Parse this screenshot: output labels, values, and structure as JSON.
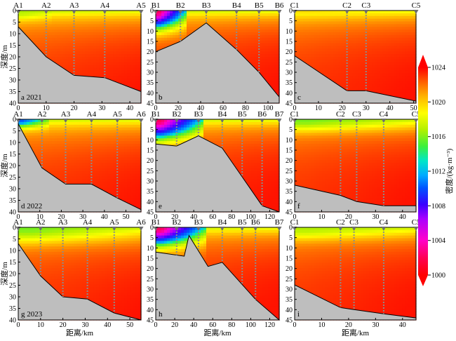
{
  "figure": {
    "y_axis_label": "深度/m",
    "x_axis_label": "距离/km",
    "colorbar_label": "密度/(kg·m⁻³)",
    "colorbar_ticks": [
      1000,
      1004,
      1008,
      1012,
      1016,
      1020,
      1024
    ]
  },
  "chart_data": [
    {
      "panel_label": "a 2021",
      "type": "heatmap",
      "xlim": [
        0,
        44
      ],
      "ylim": [
        40,
        0
      ],
      "xticks": [
        0,
        10,
        20,
        30,
        40
      ],
      "yticks": [
        0,
        5,
        10,
        15,
        20,
        25,
        30,
        35,
        40
      ],
      "stations": [
        {
          "name": "A1",
          "x": 0
        },
        {
          "name": "A2",
          "x": 10
        },
        {
          "name": "A3",
          "x": 20
        },
        {
          "name": "A4",
          "x": 31
        },
        {
          "name": "A5",
          "x": 44
        }
      ],
      "bottom_profile": [
        [
          0,
          7
        ],
        [
          10,
          20
        ],
        [
          20,
          28
        ],
        [
          31,
          29
        ],
        [
          44,
          35
        ]
      ],
      "fresh_tongue": {
        "x0": 0,
        "x1": 12,
        "depth": 4,
        "min_density": 1016
      }
    },
    {
      "panel_label": "b",
      "type": "heatmap",
      "xlim": [
        0,
        110
      ],
      "ylim": [
        45,
        0
      ],
      "xticks": [
        0,
        20,
        40,
        60,
        80,
        100
      ],
      "yticks": [
        0,
        5,
        10,
        15,
        20,
        25,
        30,
        35,
        40,
        45
      ],
      "stations": [
        {
          "name": "B1",
          "x": 0
        },
        {
          "name": "B2",
          "x": 22
        },
        {
          "name": "B3",
          "x": 45
        },
        {
          "name": "B4",
          "x": 72
        },
        {
          "name": "B5",
          "x": 92
        },
        {
          "name": "B6",
          "x": 110
        }
      ],
      "bottom_profile": [
        [
          0,
          20
        ],
        [
          22,
          15
        ],
        [
          45,
          6
        ],
        [
          72,
          19
        ],
        [
          92,
          30
        ],
        [
          110,
          42
        ]
      ],
      "fresh_tongue": {
        "x0": 0,
        "x1": 28,
        "depth": 10,
        "min_density": 1002
      }
    },
    {
      "panel_label": "c",
      "type": "heatmap",
      "xlim": [
        0,
        51
      ],
      "ylim": [
        45,
        0
      ],
      "xticks": [
        0,
        10,
        20,
        30,
        40,
        50
      ],
      "yticks": [
        0,
        5,
        10,
        15,
        20,
        25,
        30,
        35,
        40,
        45
      ],
      "stations": [
        {
          "name": "C1",
          "x": 0
        },
        {
          "name": "C2",
          "x": 22
        },
        {
          "name": "C3",
          "x": 30
        },
        {
          "name": "C5",
          "x": 51
        }
      ],
      "bottom_profile": [
        [
          0,
          22
        ],
        [
          22,
          39
        ],
        [
          30,
          39
        ],
        [
          51,
          44
        ]
      ],
      "fresh_tongue": {
        "x0": 0,
        "x1": 51,
        "depth": 2,
        "min_density": 1019
      }
    },
    {
      "panel_label": "d 2022",
      "type": "heatmap",
      "xlim": [
        0,
        57
      ],
      "ylim": [
        40,
        0
      ],
      "xticks": [
        0,
        10,
        20,
        30,
        40,
        50
      ],
      "yticks": [
        0,
        5,
        10,
        15,
        20,
        25,
        30,
        35,
        40
      ],
      "stations": [
        {
          "name": "A1",
          "x": 0
        },
        {
          "name": "A2",
          "x": 11
        },
        {
          "name": "A3",
          "x": 22
        },
        {
          "name": "A4",
          "x": 34
        },
        {
          "name": "A5",
          "x": 46
        },
        {
          "name": "A6",
          "x": 57
        }
      ],
      "bottom_profile": [
        [
          0,
          2
        ],
        [
          11,
          21
        ],
        [
          22,
          28
        ],
        [
          34,
          28
        ],
        [
          46,
          34
        ],
        [
          57,
          39
        ]
      ],
      "fresh_tongue": {
        "x0": 0,
        "x1": 14,
        "depth": 4,
        "min_density": 1010
      }
    },
    {
      "panel_label": "e",
      "type": "heatmap",
      "xlim": [
        0,
        130
      ],
      "ylim": [
        45,
        0
      ],
      "xticks": [
        0,
        20,
        40,
        60,
        80,
        100,
        120
      ],
      "yticks": [
        0,
        5,
        10,
        15,
        20,
        25,
        30,
        35,
        40,
        45
      ],
      "stations": [
        {
          "name": "B1",
          "x": 0
        },
        {
          "name": "B2",
          "x": 22
        },
        {
          "name": "B3",
          "x": 45
        },
        {
          "name": "B4",
          "x": 70
        },
        {
          "name": "B5",
          "x": 91
        },
        {
          "name": "B6",
          "x": 112
        },
        {
          "name": "B7",
          "x": 130
        }
      ],
      "bottom_profile": [
        [
          0,
          12
        ],
        [
          22,
          13
        ],
        [
          45,
          8
        ],
        [
          70,
          14
        ],
        [
          91,
          28
        ],
        [
          112,
          42
        ],
        [
          130,
          45
        ]
      ],
      "fresh_tongue": {
        "x0": 0,
        "x1": 50,
        "depth": 11,
        "min_density": 1002
      }
    },
    {
      "panel_label": "f",
      "type": "heatmap",
      "xlim": [
        0,
        45
      ],
      "ylim": [
        45,
        0
      ],
      "xticks": [
        0,
        10,
        20,
        30,
        40
      ],
      "yticks": [
        0,
        5,
        10,
        15,
        20,
        25,
        30,
        35,
        40,
        45
      ],
      "stations": [
        {
          "name": "C1",
          "x": 0
        },
        {
          "name": "C2",
          "x": 17
        },
        {
          "name": "C3",
          "x": 23
        },
        {
          "name": "C4",
          "x": 33
        },
        {
          "name": "C5",
          "x": 45
        }
      ],
      "bottom_profile": [
        [
          0,
          32
        ],
        [
          17,
          37
        ],
        [
          23,
          40
        ],
        [
          33,
          42
        ],
        [
          45,
          42
        ]
      ],
      "fresh_tongue": {
        "x0": 0,
        "x1": 45,
        "depth": 6,
        "min_density": 1015
      }
    },
    {
      "panel_label": "g 2023",
      "type": "heatmap",
      "xlim": [
        0,
        55
      ],
      "ylim": [
        40,
        0
      ],
      "xticks": [
        0,
        10,
        20,
        30,
        40,
        50
      ],
      "yticks": [
        0,
        5,
        10,
        15,
        20,
        25,
        30,
        35,
        40
      ],
      "stations": [
        {
          "name": "A1",
          "x": 0
        },
        {
          "name": "A2",
          "x": 10
        },
        {
          "name": "A3",
          "x": 20
        },
        {
          "name": "A4",
          "x": 31
        },
        {
          "name": "A5",
          "x": 43
        },
        {
          "name": "A6",
          "x": 55
        }
      ],
      "bottom_profile": [
        [
          0,
          7
        ],
        [
          10,
          21
        ],
        [
          20,
          30
        ],
        [
          31,
          31
        ],
        [
          43,
          37
        ],
        [
          55,
          40
        ]
      ],
      "fresh_tongue": {
        "x0": 0,
        "x1": 55,
        "depth": 7,
        "min_density": 1015
      }
    },
    {
      "panel_label": "h",
      "type": "heatmap",
      "xlim": [
        0,
        130
      ],
      "ylim": [
        45,
        0
      ],
      "xticks": [
        0,
        20,
        40,
        60,
        80,
        100,
        120
      ],
      "yticks": [
        0,
        5,
        10,
        15,
        20,
        25,
        30,
        35,
        40,
        45
      ],
      "stations": [
        {
          "name": "B1",
          "x": 0
        },
        {
          "name": "B2",
          "x": 22
        },
        {
          "name": "B3",
          "x": 45
        },
        {
          "name": "B4",
          "x": 70
        },
        {
          "name": "B5",
          "x": 91
        },
        {
          "name": "B6",
          "x": 105
        },
        {
          "name": "B7",
          "x": 130
        }
      ],
      "bottom_profile": [
        [
          0,
          12
        ],
        [
          30,
          14
        ],
        [
          35,
          4
        ],
        [
          55,
          19
        ],
        [
          70,
          17
        ],
        [
          105,
          35
        ],
        [
          130,
          45
        ]
      ],
      "fresh_tongue": {
        "x0": 0,
        "x1": 52,
        "depth": 10,
        "min_density": 1002
      }
    },
    {
      "panel_label": "i",
      "type": "heatmap",
      "xlim": [
        0,
        45
      ],
      "ylim": [
        45,
        0
      ],
      "xticks": [
        0,
        10,
        20,
        30,
        40
      ],
      "yticks": [
        0,
        5,
        10,
        15,
        20,
        25,
        30,
        35,
        40,
        45
      ],
      "stations": [
        {
          "name": "C1",
          "x": 0
        },
        {
          "name": "C2",
          "x": 17
        },
        {
          "name": "C3",
          "x": 22
        },
        {
          "name": "C4",
          "x": 33
        },
        {
          "name": "C5",
          "x": 45
        }
      ],
      "bottom_profile": [
        [
          0,
          28
        ],
        [
          17,
          39
        ],
        [
          22,
          40
        ],
        [
          33,
          42
        ],
        [
          45,
          44
        ]
      ],
      "fresh_tongue": {
        "x0": 0,
        "x1": 45,
        "depth": 6,
        "min_density": 1016
      }
    }
  ]
}
